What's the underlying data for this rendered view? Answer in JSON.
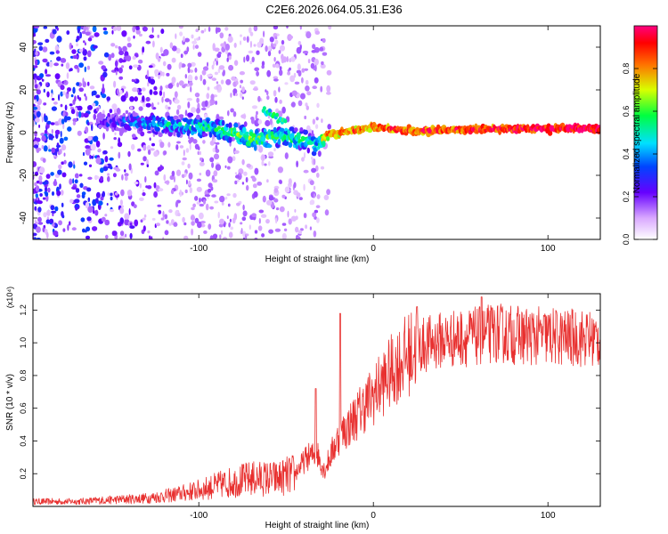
{
  "title": "C2E6.2026.064.05.31.E36",
  "chart_data": [
    {
      "type": "heatmap",
      "xlabel": "Height of straight line (km)",
      "ylabel": "Frequency (Hz)",
      "xlim": [
        -195,
        130
      ],
      "ylim": [
        -50,
        50
      ],
      "xticks": [
        -100,
        0,
        100
      ],
      "yticks": [
        -40,
        -20,
        0,
        20,
        40
      ],
      "colorbar": {
        "label": "Normalized spectral amplitude",
        "range": [
          0,
          1
        ],
        "ticks": [
          "0.0",
          "0.2",
          "0.4",
          "0.6",
          "0.8"
        ]
      },
      "ridge": [
        {
          "x": -155,
          "f": 5,
          "amp": 0.25
        },
        {
          "x": -140,
          "f": 5,
          "amp": 0.35
        },
        {
          "x": -120,
          "f": 4,
          "amp": 0.45
        },
        {
          "x": -100,
          "f": 3,
          "amp": 0.5
        },
        {
          "x": -85,
          "f": 1,
          "amp": 0.55
        },
        {
          "x": -70,
          "f": -3,
          "amp": 0.6
        },
        {
          "x": -55,
          "f": -2,
          "amp": 0.55
        },
        {
          "x": -40,
          "f": -3,
          "amp": 0.55
        },
        {
          "x": -32,
          "f": -6,
          "amp": 0.45
        },
        {
          "x": -27,
          "f": -1,
          "amp": 0.8
        },
        {
          "x": -10,
          "f": 1,
          "amp": 0.85
        },
        {
          "x": 0,
          "f": 3,
          "amp": 0.85
        },
        {
          "x": 20,
          "f": 1,
          "amp": 0.9
        },
        {
          "x": 50,
          "f": 1,
          "amp": 0.9
        },
        {
          "x": 80,
          "f": 2,
          "amp": 0.95
        },
        {
          "x": 110,
          "f": 2,
          "amp": 0.98
        },
        {
          "x": 130,
          "f": 2,
          "amp": 1.0
        }
      ],
      "side_branch": [
        {
          "x": -62,
          "f": 10,
          "amp": 0.45
        },
        {
          "x": -57,
          "f": 8,
          "amp": 0.5
        },
        {
          "x": -52,
          "f": 5,
          "amp": 0.55
        }
      ]
    },
    {
      "type": "line",
      "xlabel": "Height of straight line (km)",
      "ylabel": "SNR (10 * v/v)",
      "y_scale_label": "(x10⁴)",
      "xlim": [
        -195,
        130
      ],
      "ylim": [
        0,
        1.3
      ],
      "xticks": [
        -100,
        0,
        100
      ],
      "yticks": [
        "0.2",
        "0.4",
        "0.6",
        "0.8",
        "1.0",
        "1.2"
      ],
      "series": [
        {
          "name": "SNR",
          "color": "#e8302f",
          "envelope_x": [
            -195,
            -170,
            -150,
            -130,
            -115,
            -100,
            -85,
            -70,
            -55,
            -45,
            -38,
            -32,
            -28,
            -25,
            -20,
            -15,
            -10,
            -5,
            0,
            5,
            10,
            15,
            20,
            25,
            30,
            40,
            50,
            60,
            70,
            80,
            90,
            100,
            110,
            120,
            130
          ],
          "envelope_y": [
            0.03,
            0.03,
            0.04,
            0.05,
            0.07,
            0.1,
            0.14,
            0.17,
            0.17,
            0.2,
            0.3,
            0.32,
            0.22,
            0.3,
            0.42,
            0.48,
            0.55,
            0.62,
            0.68,
            0.75,
            0.82,
            0.88,
            0.93,
            0.97,
            0.99,
            1.02,
            1.03,
            1.04,
            1.06,
            1.05,
            1.04,
            1.04,
            1.03,
            1.03,
            1.02
          ],
          "spikes": [
            {
              "x": -33,
              "y": 0.72
            },
            {
              "x": -19,
              "y": 1.18
            },
            {
              "x": 25,
              "y": 1.22
            },
            {
              "x": 62,
              "y": 1.28
            }
          ]
        }
      ]
    }
  ]
}
